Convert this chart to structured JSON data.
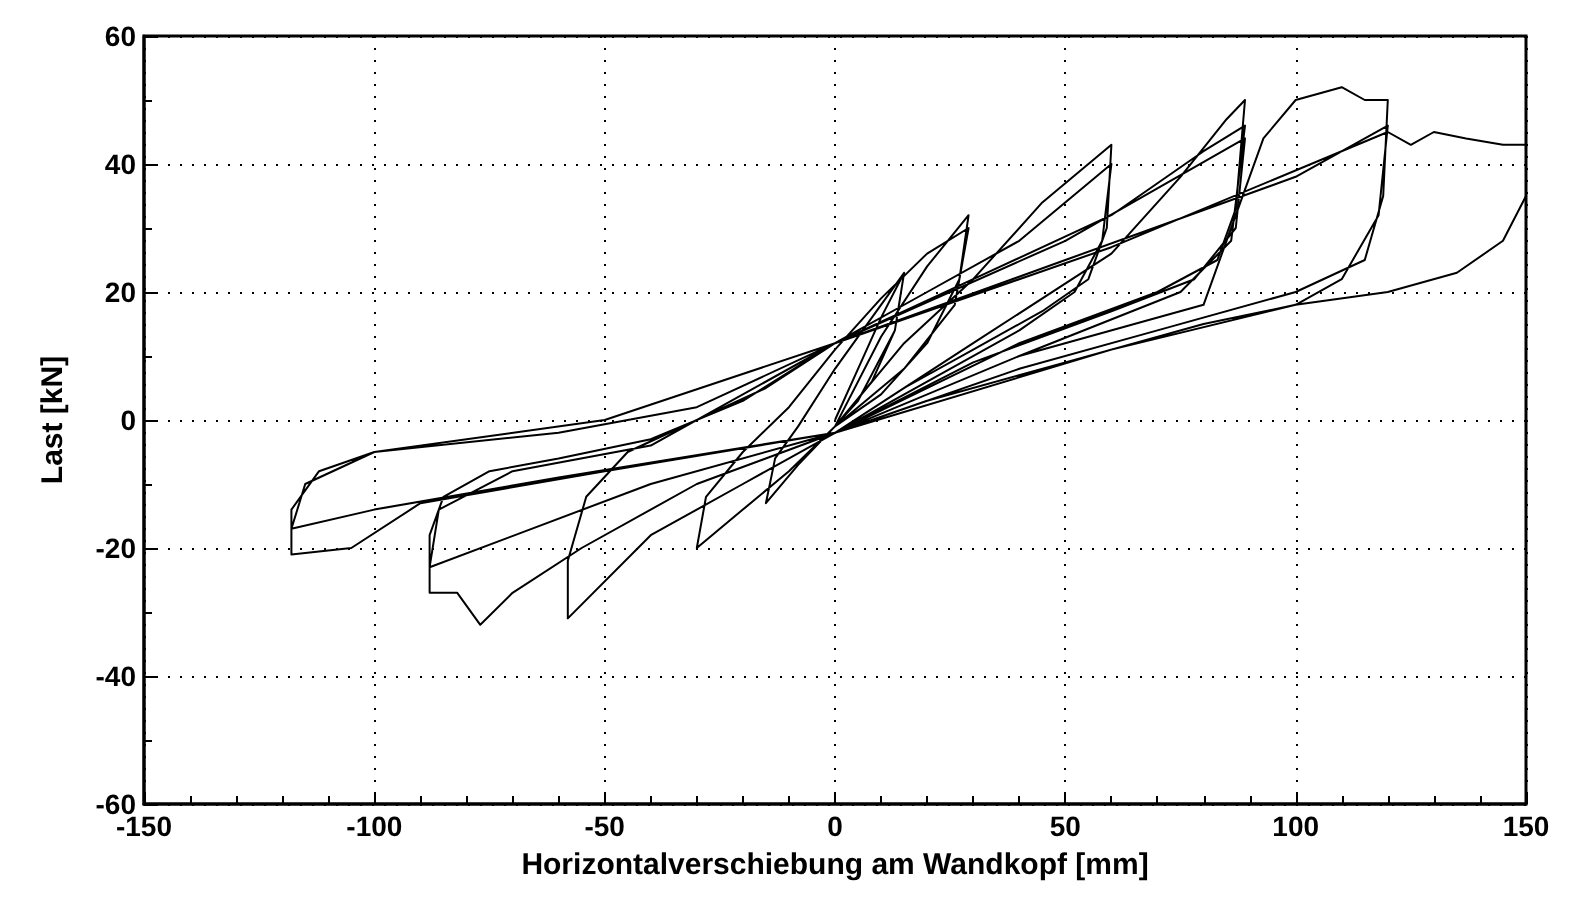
{
  "chart_data": {
    "type": "line",
    "xlabel": "Horizontalverschiebung am Wandkopf [mm]",
    "ylabel": "Last [kN]",
    "xlim": [
      -150,
      150
    ],
    "xticks": [
      -150,
      -100,
      -50,
      0,
      50,
      100,
      150
    ],
    "ylim": [
      -60,
      60
    ],
    "yticks": [
      -60,
      -40,
      -20,
      0,
      20,
      40,
      60
    ],
    "grid": true,
    "marker": "none",
    "line_style": "solid",
    "series": [
      {
        "color": "#000000",
        "x": [
          0,
          5,
          10,
          15,
          13,
          8,
          0,
          -8,
          -15,
          -13,
          -8,
          0,
          8,
          15,
          13,
          5,
          0,
          10,
          20,
          29,
          27,
          20,
          10,
          0,
          -10,
          -20,
          -30,
          -28,
          -20,
          -10,
          0,
          10,
          20,
          29,
          26,
          15,
          0,
          15,
          30,
          45,
          60,
          59,
          55,
          45,
          30,
          15,
          0,
          -20,
          -40,
          -58,
          -58,
          -54,
          -45,
          -30,
          -15,
          0,
          20,
          40,
          60,
          58,
          52,
          40,
          20,
          0,
          30,
          60,
          75,
          85,
          89,
          87,
          83,
          70,
          40,
          0,
          -30,
          -55,
          -70,
          -77,
          -82,
          -88,
          -88,
          -85,
          -75,
          -60,
          -40,
          -20,
          0,
          30,
          60,
          80,
          89,
          86,
          75,
          40,
          0,
          -40,
          -88,
          -86,
          -70,
          -40,
          0,
          50,
          89,
          87,
          78,
          60,
          30,
          0,
          40,
          80,
          93,
          100,
          110,
          115,
          120,
          119,
          115,
          100,
          70,
          40,
          0,
          -50,
          -90,
          -105,
          -118,
          -118,
          -112,
          -100,
          -60,
          -30,
          0,
          50,
          100,
          120,
          118,
          110,
          100,
          60,
          0,
          -60,
          -100,
          -118,
          -115,
          -100,
          -50,
          0,
          60,
          120,
          125,
          130,
          137,
          145,
          150,
          150,
          145,
          135,
          120,
          100,
          80,
          50,
          20,
          0
        ],
        "values": [
          0,
          8,
          16,
          23,
          14,
          6,
          -1,
          -7,
          -13,
          -6,
          -1,
          8,
          16,
          23,
          14,
          3,
          -1,
          13,
          24,
          32,
          22,
          12,
          4,
          -1,
          -8,
          -14,
          -20,
          -12,
          -5,
          2,
          11,
          19,
          26,
          30,
          18,
          8,
          -1,
          12,
          22,
          34,
          43,
          30,
          22,
          17,
          11,
          5,
          -2,
          -10,
          -18,
          -31,
          -22,
          -12,
          -5,
          0,
          5,
          12,
          20,
          28,
          40,
          28,
          20,
          14,
          6,
          -2,
          12,
          26,
          38,
          47,
          50,
          33,
          25,
          20,
          12,
          -2,
          -10,
          -20,
          -27,
          -32,
          -27,
          -27,
          -18,
          -12,
          -8,
          -6,
          -3,
          3,
          12,
          22,
          32,
          42,
          46,
          28,
          20,
          10,
          -2,
          -10,
          -23,
          -14,
          -8,
          -4,
          12,
          28,
          44,
          30,
          22,
          17,
          9,
          -2,
          10,
          18,
          44,
          50,
          52,
          50,
          50,
          35,
          25,
          20,
          14,
          8,
          -2,
          -8,
          -13,
          -20,
          -21,
          -14,
          -8,
          -5,
          -2,
          2,
          12,
          25,
          38,
          46,
          32,
          22,
          18,
          11,
          -2,
          -9,
          -14,
          -17,
          -10,
          -5,
          0,
          12,
          27,
          45,
          43,
          45,
          44,
          43,
          43,
          35,
          28,
          23,
          20,
          18,
          15,
          9,
          3,
          -2
        ]
      }
    ]
  }
}
